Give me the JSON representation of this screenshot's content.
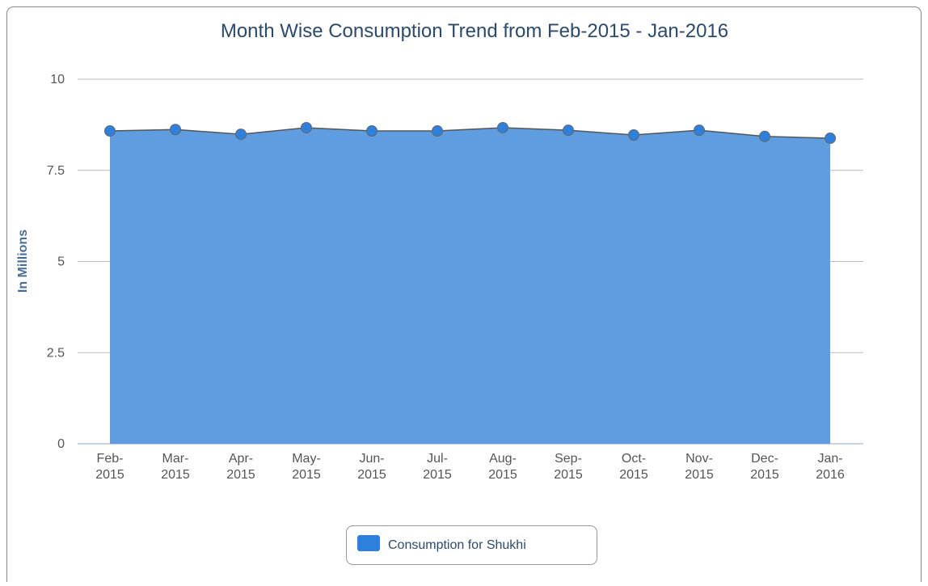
{
  "chart_data": {
    "type": "area",
    "title": "Month Wise Consumption Trend from Feb-2015 - Jan-2016",
    "y_label": "In Millions",
    "categories": [
      "Feb-2015",
      "Mar-2015",
      "Apr-2015",
      "May-2015",
      "Jun-2015",
      "Jul-2015",
      "Aug-2015",
      "Sep-2015",
      "Oct-2015",
      "Nov-2015",
      "Dec-2015",
      "Jan-2016"
    ],
    "series": [
      {
        "name": "Consumption for Shukhi",
        "color": "#2f7fdc",
        "values": [
          8.58,
          8.62,
          8.49,
          8.67,
          8.58,
          8.58,
          8.67,
          8.6,
          8.47,
          8.6,
          8.43,
          8.38
        ]
      }
    ],
    "ylim": [
      0,
      10
    ],
    "yticks": [
      0,
      2.5,
      5,
      7.5,
      10
    ],
    "grid": true,
    "legend": "bottom"
  }
}
